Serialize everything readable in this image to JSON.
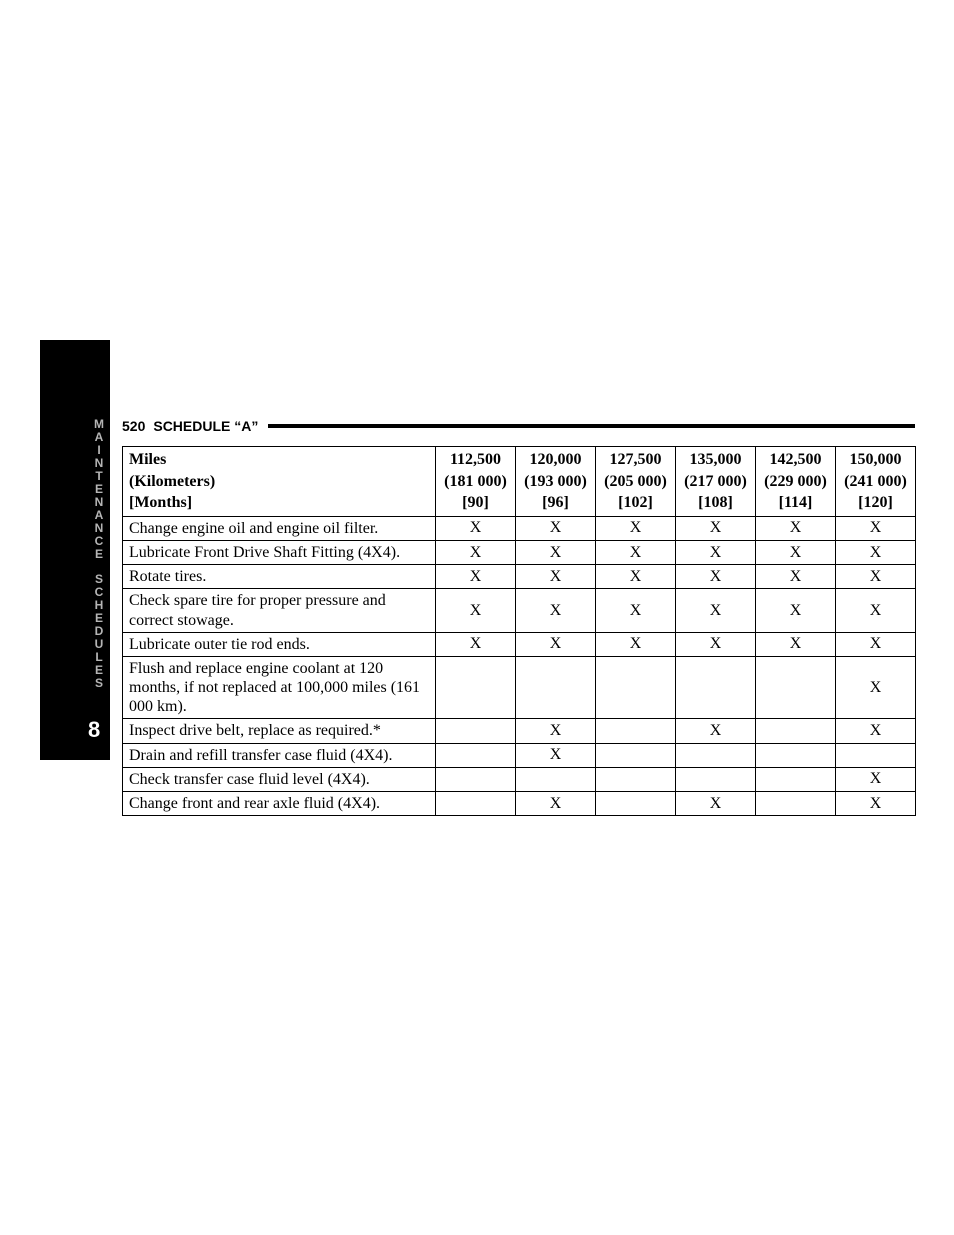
{
  "tab": {
    "word1": "MAINTENANCE",
    "word2": "SCHEDULES",
    "number": "8"
  },
  "header": {
    "page_number": "520",
    "section_title": "SCHEDULE “A”"
  },
  "table": {
    "unit_labels": {
      "miles": "Miles",
      "km": "(Kilometers)",
      "months": "[Months]"
    },
    "columns": [
      {
        "miles": "112,500",
        "km": "(181 000)",
        "months": "[90]"
      },
      {
        "miles": "120,000",
        "km": "(193 000)",
        "months": "[96]"
      },
      {
        "miles": "127,500",
        "km": "(205 000)",
        "months": "[102]"
      },
      {
        "miles": "135,000",
        "km": "(217 000)",
        "months": "[108]"
      },
      {
        "miles": "142,500",
        "km": "(229 000)",
        "months": "[114]"
      },
      {
        "miles": "150,000",
        "km": "(241 000)",
        "months": "[120]"
      }
    ],
    "rows": [
      {
        "desc": "Change engine oil and engine oil filter.",
        "v": [
          "X",
          "X",
          "X",
          "X",
          "X",
          "X"
        ]
      },
      {
        "desc": "Lubricate Front Drive Shaft Fitting (4X4).",
        "v": [
          "X",
          "X",
          "X",
          "X",
          "X",
          "X"
        ]
      },
      {
        "desc": "Rotate tires.",
        "v": [
          "X",
          "X",
          "X",
          "X",
          "X",
          "X"
        ]
      },
      {
        "desc": "Check spare tire for proper pressure and correct stowage.",
        "v": [
          "X",
          "X",
          "X",
          "X",
          "X",
          "X"
        ]
      },
      {
        "desc": "Lubricate outer tie rod ends.",
        "v": [
          "X",
          "X",
          "X",
          "X",
          "X",
          "X"
        ]
      },
      {
        "desc": "Flush and replace engine coolant at 120 months, if not replaced at 100,000 miles (161 000 km).",
        "v": [
          "",
          "",
          "",
          "",
          "",
          "X"
        ]
      },
      {
        "desc": "Inspect drive belt, replace as required.*",
        "v": [
          "",
          "X",
          "",
          "X",
          "",
          "X"
        ]
      },
      {
        "desc": "Drain and refill transfer case fluid (4X4).",
        "v": [
          "",
          "X",
          "",
          "",
          "",
          ""
        ]
      },
      {
        "desc": "Check transfer case fluid level (4X4).",
        "v": [
          "",
          "",
          "",
          "",
          "",
          "X"
        ]
      },
      {
        "desc": "Change front and rear axle fluid (4X4).",
        "v": [
          "",
          "X",
          "",
          "X",
          "",
          "X"
        ]
      }
    ]
  },
  "colors": {
    "page_bg": "#ffffff",
    "tab_bg": "#000000",
    "tab_text": "#b5b5b5",
    "tab_number": "#ffffff",
    "border": "#000000",
    "text": "#000000"
  }
}
